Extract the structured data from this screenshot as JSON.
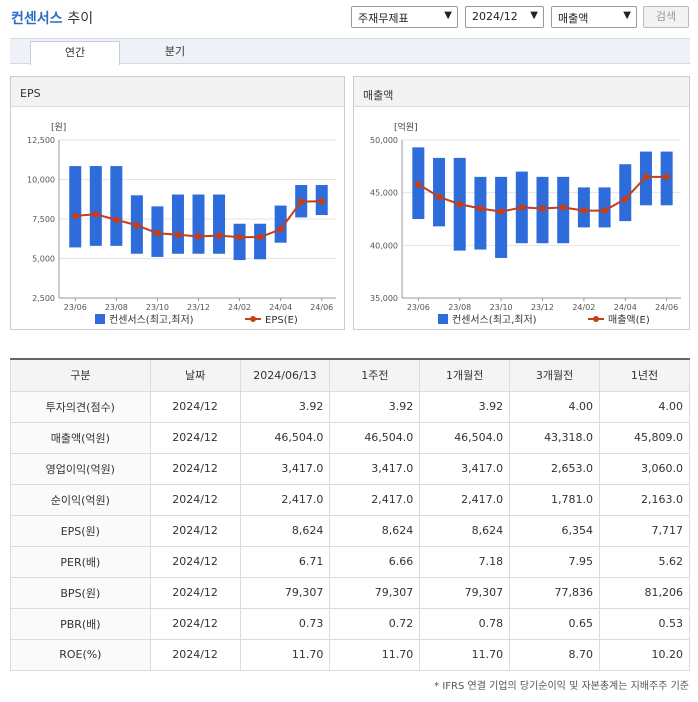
{
  "header": {
    "title_accent": "컨센서스",
    "title_rest": "추이",
    "select_type": "주재무제표",
    "select_date": "2024/12",
    "select_metric": "매출액",
    "search_label": "검색"
  },
  "tabs": [
    {
      "label": "연간"
    },
    {
      "label": "분기"
    }
  ],
  "chart_data": [
    {
      "type": "bar",
      "title": "EPS",
      "ylabel": "[원]",
      "ylim": [
        2500,
        12500
      ],
      "yticks": [
        "12,500",
        "10,000",
        "7,500",
        "5,000",
        "2,500"
      ],
      "ytick_values": [
        12500,
        10000,
        7500,
        5000,
        2500
      ],
      "xtick_labels": [
        "23/06",
        "23/08",
        "23/10",
        "23/12",
        "24/02",
        "24/04",
        "24/06"
      ],
      "legend": [
        "컨센서스(최고,최저)",
        "EPS(E)"
      ],
      "series": [
        {
          "name": "컨센서스(최고,최저)",
          "range": [
            [
              5700,
              10850
            ],
            [
              5800,
              10850
            ],
            [
              5800,
              10850
            ],
            [
              5300,
              9000
            ],
            [
              5100,
              8300
            ],
            [
              5300,
              9050
            ],
            [
              5300,
              9050
            ],
            [
              5300,
              9050
            ],
            [
              4900,
              7200
            ],
            [
              4950,
              7200
            ],
            [
              6000,
              8350
            ],
            [
              7600,
              9650
            ],
            [
              7750,
              9650
            ]
          ]
        },
        {
          "name": "EPS(E)",
          "values": [
            7700,
            7800,
            7450,
            7100,
            6600,
            6500,
            6400,
            6450,
            6350,
            6350,
            6850,
            8600,
            8624
          ]
        }
      ],
      "bar_color": "#2e6bdb",
      "line_color": "#c63d1a"
    },
    {
      "type": "bar",
      "title": "매출액",
      "ylabel": "[억원]",
      "ylim": [
        35000,
        50000
      ],
      "yticks": [
        "50,000",
        "45,000",
        "40,000",
        "35,000"
      ],
      "ytick_values": [
        50000,
        45000,
        40000,
        35000
      ],
      "xtick_labels": [
        "23/06",
        "23/08",
        "23/10",
        "23/12",
        "24/02",
        "24/04",
        "24/06"
      ],
      "legend": [
        "컨센서스(최고,최저)",
        "매출액(E)"
      ],
      "series": [
        {
          "name": "컨센서스(최고,최저)",
          "range": [
            [
              42500,
              49300
            ],
            [
              41800,
              48300
            ],
            [
              39500,
              48300
            ],
            [
              39600,
              46500
            ],
            [
              38800,
              46500
            ],
            [
              40200,
              47000
            ],
            [
              40200,
              46500
            ],
            [
              40200,
              46500
            ],
            [
              41700,
              45500
            ],
            [
              41700,
              45500
            ],
            [
              42300,
              47700
            ],
            [
              43800,
              48900
            ],
            [
              43800,
              48900
            ]
          ]
        },
        {
          "name": "매출액(E)",
          "values": [
            45800,
            44600,
            43900,
            43500,
            43200,
            43600,
            43500,
            43600,
            43300,
            43300,
            44400,
            46500,
            46504
          ]
        }
      ],
      "bar_color": "#2e6bdb",
      "line_color": "#c63d1a"
    }
  ],
  "table": {
    "headers": [
      "구분",
      "날짜",
      "2024/06/13",
      "1주전",
      "1개월전",
      "3개월전",
      "1년전"
    ],
    "rows": [
      [
        "투자의견(점수)",
        "2024/12",
        "3.92",
        "3.92",
        "3.92",
        "4.00",
        "4.00"
      ],
      [
        "매출액(억원)",
        "2024/12",
        "46,504.0",
        "46,504.0",
        "46,504.0",
        "43,318.0",
        "45,809.0"
      ],
      [
        "영업이익(억원)",
        "2024/12",
        "3,417.0",
        "3,417.0",
        "3,417.0",
        "2,653.0",
        "3,060.0"
      ],
      [
        "순이익(억원)",
        "2024/12",
        "2,417.0",
        "2,417.0",
        "2,417.0",
        "1,781.0",
        "2,163.0"
      ],
      [
        "EPS(원)",
        "2024/12",
        "8,624",
        "8,624",
        "8,624",
        "6,354",
        "7,717"
      ],
      [
        "PER(배)",
        "2024/12",
        "6.71",
        "6.66",
        "7.18",
        "7.95",
        "5.62"
      ],
      [
        "BPS(원)",
        "2024/12",
        "79,307",
        "79,307",
        "79,307",
        "77,836",
        "81,206"
      ],
      [
        "PBR(배)",
        "2024/12",
        "0.73",
        "0.72",
        "0.78",
        "0.65",
        "0.53"
      ],
      [
        "ROE(%)",
        "2024/12",
        "11.70",
        "11.70",
        "11.70",
        "8.70",
        "10.20"
      ]
    ]
  },
  "footnote": "* IFRS 연결 기업의 당기순이익 및 자본총계는 지배주주 기준"
}
